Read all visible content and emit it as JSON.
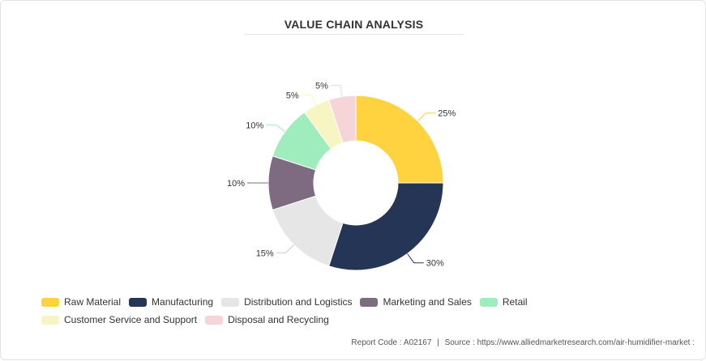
{
  "chart_data": {
    "type": "pie",
    "variant": "donut",
    "title": "VALUE CHAIN ANALYSIS",
    "categories": [
      "Raw Material",
      "Manufacturing",
      "Distribution and Logistics",
      "Marketing and Sales",
      "Retail",
      "Customer Service and Support",
      "Disposal and Recycling"
    ],
    "values": [
      25,
      30,
      15,
      10,
      10,
      5,
      5
    ],
    "labels": [
      "25%",
      "30%",
      "15%",
      "10%",
      "10%",
      "5%",
      "5%"
    ],
    "colors": [
      "#FFD23F",
      "#253555",
      "#E6E6E6",
      "#7E6B82",
      "#9FEDBD",
      "#F7F6C2",
      "#F5D5D8"
    ],
    "legend_position": "bottom"
  },
  "footer": {
    "report_code": "Report Code : A02167",
    "separator": "|",
    "source": "Source : https://www.alliedmarketresearch.com/air-humidifier-market :"
  }
}
